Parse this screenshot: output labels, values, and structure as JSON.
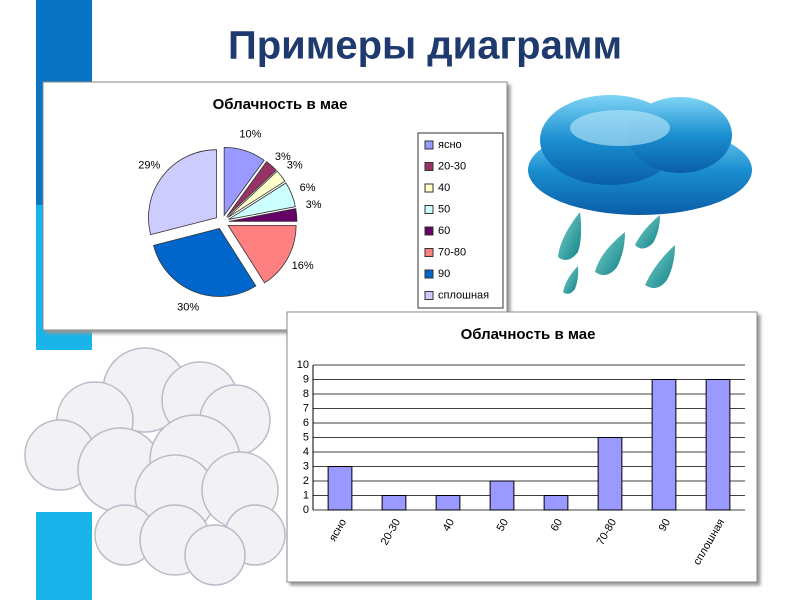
{
  "title": "Примеры диаграмм",
  "chart_data": [
    {
      "type": "pie",
      "title": "Облачность в мае",
      "categories": [
        "ясно",
        "20-30",
        "40",
        "50",
        "60",
        "70-80",
        "90",
        "сплошная"
      ],
      "values": [
        10,
        3,
        3,
        6,
        3,
        16,
        30,
        29
      ],
      "value_labels": [
        "10%",
        "3%",
        "3%",
        "6%",
        "3%",
        "16%",
        "30%",
        "29%"
      ],
      "colors": [
        "#9999ff",
        "#993366",
        "#ffffcc",
        "#ccffff",
        "#660066",
        "#ff8080",
        "#0066cc",
        "#ccccff"
      ],
      "legend": "right"
    },
    {
      "type": "bar",
      "title": "Облачность в мае",
      "categories": [
        "ясно",
        "20-30",
        "40",
        "50",
        "60",
        "70-80",
        "90",
        "сплошная"
      ],
      "values": [
        3,
        1,
        1,
        2,
        1,
        5,
        9,
        9
      ],
      "color": "#9999ff",
      "ylim": [
        0,
        10
      ],
      "yticks": [
        0,
        1,
        2,
        3,
        4,
        5,
        6,
        7,
        8,
        9,
        10
      ],
      "grid": true
    }
  ]
}
